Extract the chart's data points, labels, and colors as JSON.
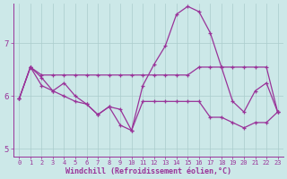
{
  "xlabel": "Windchill (Refroidissement éolien,°C)",
  "bg_color": "#cce8e8",
  "line_color": "#993399",
  "grid_color": "#aacccc",
  "xlim": [
    -0.5,
    23.5
  ],
  "ylim": [
    4.85,
    7.75
  ],
  "yticks": [
    5,
    6,
    7
  ],
  "xticks": [
    0,
    1,
    2,
    3,
    4,
    5,
    6,
    7,
    8,
    9,
    10,
    11,
    12,
    13,
    14,
    15,
    16,
    17,
    18,
    19,
    20,
    21,
    22,
    23
  ],
  "line1_x": [
    0,
    1,
    2,
    3,
    4,
    5,
    6,
    7,
    8,
    9,
    10,
    11,
    12,
    13,
    14,
    15,
    16,
    17,
    18,
    19,
    20,
    21,
    22,
    23
  ],
  "line1_y": [
    5.95,
    6.55,
    6.35,
    6.1,
    6.25,
    6.0,
    5.85,
    5.65,
    5.8,
    5.45,
    5.35,
    6.2,
    6.6,
    6.95,
    7.55,
    7.7,
    7.6,
    7.2,
    6.55,
    5.9,
    5.7,
    6.1,
    6.25,
    5.7
  ],
  "line2_x": [
    0,
    1,
    2,
    3,
    4,
    5,
    6,
    7,
    8,
    9,
    10,
    11,
    12,
    13,
    14,
    15,
    16,
    17,
    18,
    19,
    20,
    21,
    22,
    23
  ],
  "line2_y": [
    5.95,
    6.55,
    6.4,
    6.4,
    6.4,
    6.4,
    6.4,
    6.4,
    6.4,
    6.4,
    6.4,
    6.4,
    6.4,
    6.4,
    6.4,
    6.4,
    6.55,
    6.55,
    6.55,
    6.55,
    6.55,
    6.55,
    6.55,
    5.7
  ],
  "line3_x": [
    0,
    1,
    2,
    3,
    4,
    5,
    6,
    7,
    8,
    9,
    10,
    11,
    12,
    13,
    14,
    15,
    16,
    17,
    18,
    19,
    20,
    21,
    22,
    23
  ],
  "line3_y": [
    5.95,
    6.55,
    6.2,
    6.1,
    6.0,
    5.9,
    5.85,
    5.65,
    5.8,
    5.75,
    5.35,
    5.9,
    5.9,
    5.9,
    5.9,
    5.9,
    5.9,
    5.6,
    5.6,
    5.5,
    5.4,
    5.5,
    5.5,
    5.7
  ],
  "marker": "+",
  "markersize": 3.5,
  "linewidth": 0.9
}
